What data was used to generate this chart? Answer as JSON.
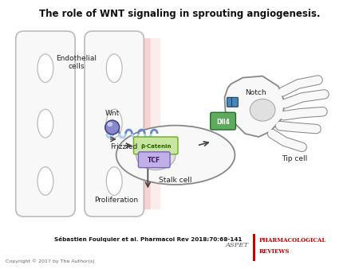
{
  "title": "The role of WNT signaling in sprouting angiogenesis.",
  "title_fontsize": 8.5,
  "citation": "Sébastien Foulquier et al. Pharmacol Rev 2018;70:68-141",
  "copyright": "Copyright © 2017 by The Author(s)",
  "labels": {
    "endothelial_cells": "Endothelial\ncells",
    "wnt": "Wnt",
    "frizzled": "Frizzled",
    "notch": "Notch",
    "dll4": "Dll4",
    "tip_cell": "Tip cell",
    "stalk_cell": "Stalk cell",
    "beta_catenin": "β-Catenin",
    "tcf": "TCF",
    "proliferation": "Proliferation"
  },
  "colors": {
    "background": "#ffffff",
    "cell_fill": "#f8f8f8",
    "cell_stroke": "#bbbbbb",
    "red_center": "#cc3333",
    "tip_fill": "#f8f8f8",
    "tip_stroke": "#888888",
    "stalk_fill": "#f8f8f8",
    "stalk_stroke": "#888888",
    "nucleus_fill": "#e0e0e0",
    "nucleus_stroke": "#aaaaaa",
    "beta_catenin_fill": "#c8e6a0",
    "beta_catenin_stroke": "#6aaa20",
    "tcf_fill": "#c0b0e8",
    "tcf_stroke": "#8060c0",
    "dll4_fill": "#60aa60",
    "dll4_stroke": "#207020",
    "notch_fill": "#60aa60",
    "notch_stroke": "#207020",
    "helix_color1": "#aaccee",
    "helix_color2": "#6688cc",
    "wnt_fill": "#8888cc",
    "wnt_stroke": "#444488",
    "arrow_color": "#444444",
    "text_color": "#222222",
    "aspet_red": "#cc0000"
  }
}
